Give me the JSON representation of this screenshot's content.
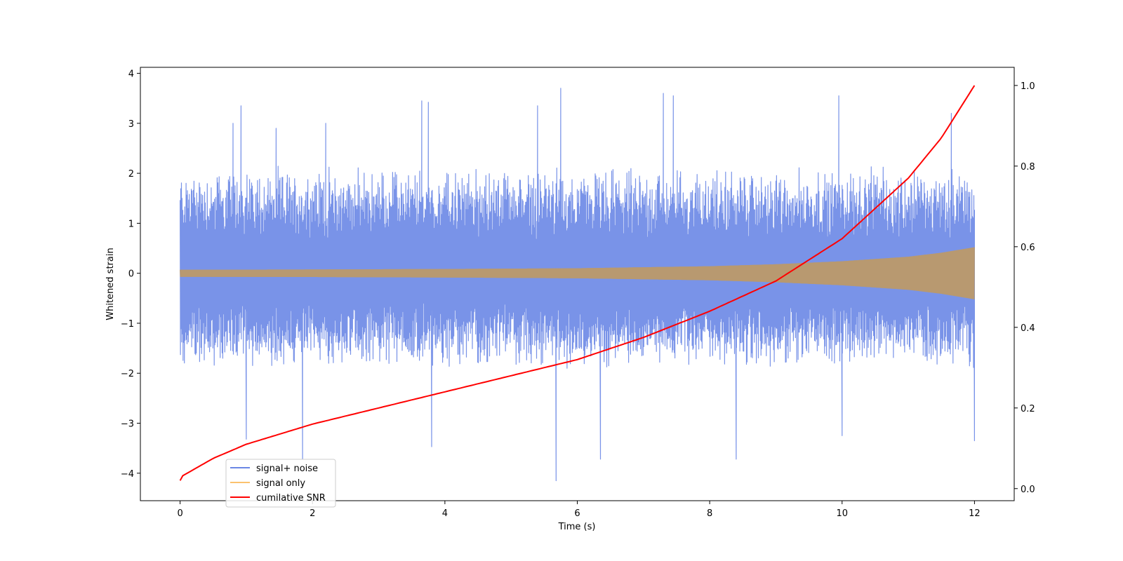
{
  "chart_data": {
    "type": "line",
    "xlabel": "Time (s)",
    "ylabel": "Whitened strain",
    "xlim": [
      -0.6,
      12.6
    ],
    "ylim": [
      -4.55,
      4.12
    ],
    "ylim_right": [
      -0.03,
      1.045
    ],
    "x_ticks": [
      0,
      2,
      4,
      6,
      8,
      10,
      12
    ],
    "x_tick_labels": [
      "0",
      "2",
      "4",
      "6",
      "8",
      "10",
      "12"
    ],
    "y_ticks": [
      -4,
      -3,
      -2,
      -1,
      0,
      1,
      2,
      3,
      4
    ],
    "y_tick_labels": [
      "−4",
      "−3",
      "−2",
      "−1",
      "0",
      "1",
      "2",
      "3",
      "4"
    ],
    "y2_ticks": [
      0.0,
      0.2,
      0.4,
      0.6,
      0.8,
      1.0
    ],
    "y2_tick_labels": [
      "0.0",
      "0.2",
      "0.4",
      "0.6",
      "0.8",
      "1.0"
    ],
    "grid": false,
    "legend_position": "lower-left",
    "series": [
      {
        "name": "signal+ noise",
        "axis": "left",
        "color": "#6a87e5",
        "x_range": [
          0,
          12
        ],
        "typical_envelope": [
          -1.6,
          1.8
        ],
        "peaks": [
          {
            "x": 0.8,
            "y": 3.0
          },
          {
            "x": 0.92,
            "y": 3.35
          },
          {
            "x": 1.0,
            "y": -3.32
          },
          {
            "x": 1.45,
            "y": 2.9
          },
          {
            "x": 1.85,
            "y": -3.72
          },
          {
            "x": 2.2,
            "y": 3.0
          },
          {
            "x": 3.65,
            "y": 3.45
          },
          {
            "x": 3.75,
            "y": 3.42
          },
          {
            "x": 3.8,
            "y": -3.47
          },
          {
            "x": 5.4,
            "y": 3.35
          },
          {
            "x": 5.68,
            "y": -4.15
          },
          {
            "x": 5.75,
            "y": 3.7
          },
          {
            "x": 6.35,
            "y": -3.72
          },
          {
            "x": 7.3,
            "y": 3.6
          },
          {
            "x": 7.45,
            "y": 3.55
          },
          {
            "x": 8.4,
            "y": -3.72
          },
          {
            "x": 9.95,
            "y": 3.55
          },
          {
            "x": 10.0,
            "y": -3.25
          },
          {
            "x": 11.65,
            "y": 3.2
          },
          {
            "x": 12.0,
            "y": -3.35
          }
        ]
      },
      {
        "name": "signal only",
        "axis": "left",
        "color": "#fbc26e",
        "x": [
          0,
          2,
          4,
          6,
          8,
          9,
          10,
          11,
          11.5,
          12
        ],
        "amplitude": [
          0.07,
          0.075,
          0.085,
          0.1,
          0.14,
          0.18,
          0.24,
          0.33,
          0.41,
          0.52
        ]
      },
      {
        "name": "cumilative SNR",
        "axis": "right",
        "color": "#ff0000",
        "x": [
          0,
          0.02,
          0.5,
          1,
          2,
          3,
          4,
          5,
          6,
          7,
          8,
          9,
          10,
          11,
          11.5,
          12
        ],
        "y": [
          0.02,
          0.03,
          0.075,
          0.11,
          0.16,
          0.2,
          0.24,
          0.28,
          0.32,
          0.375,
          0.44,
          0.515,
          0.62,
          0.77,
          0.87,
          1.0
        ]
      }
    ]
  }
}
